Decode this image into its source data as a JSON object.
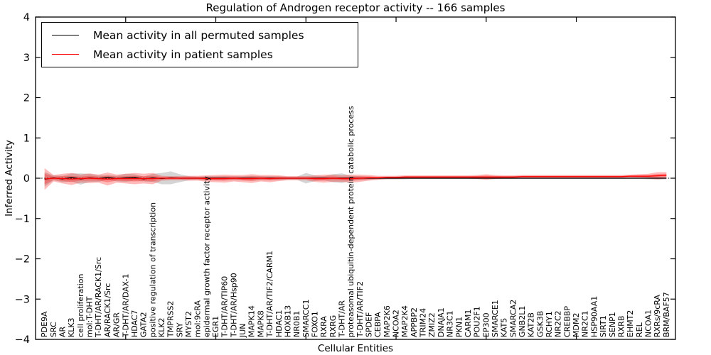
{
  "figure": {
    "title": "Regulation of Androgen receptor activity -- 166 samples",
    "xlabel": "Cellular Entities",
    "ylabel": "Inferred Activity"
  },
  "legend": {
    "entries": [
      {
        "label": "Mean activity in all permuted samples",
        "color": "#000000"
      },
      {
        "label": "Mean activity in patient samples",
        "color": "#ff0000"
      }
    ]
  },
  "colors": {
    "permuted_line": "#000000",
    "patient_line": "#ff0000",
    "permuted_band": "rgba(125,125,125,0.32)",
    "patient_band": "rgba(255,0,0,0.27)",
    "zero_line": "#000000",
    "background": "#ffffff"
  },
  "chart_data": {
    "type": "line",
    "title": "Regulation of Androgen receptor activity -- 166 samples",
    "xlabel": "Cellular Entities",
    "ylabel": "Inferred Activity",
    "ylim": [
      -4,
      4
    ],
    "yticks": [
      4,
      3,
      2,
      1,
      0,
      -1,
      -2,
      -3,
      -4
    ],
    "xtick_interval": 10,
    "grid": false,
    "zero_line_dashed": true,
    "legend_position": "upper-left",
    "categories": [
      "PDE9A",
      "SRC",
      "AR",
      "KLK3",
      "cell proliferation",
      "mol:T-DHT",
      "T-DHT/AR/RACK1/Src",
      "AR/RACK1/Src",
      "AR/GR",
      "T-DHT/AR/DAX-1",
      "HDAC7",
      "GATA2",
      "positive regulation of transcription",
      "KLK2",
      "TMPRSS2",
      "SRY",
      "MYST2",
      "mol:9cRA",
      "epidermal growth factor receptor activity",
      "EGR1",
      "T-DHT/AR/TIP60",
      "T-DHT/AR/Hsp90",
      "JUN",
      "MAPK14",
      "MAPK8",
      "T-DHT/AR/TIF2/CARM1",
      "HDAC1",
      "HOXB13",
      "NR0B1",
      "SMARCC1",
      "FOXO1",
      "RXRA",
      "RXRG",
      "T-DHT/AR",
      "proteasomal ubiquitin-dependent protein catabolic process",
      "T-DHT/AR/TIF2",
      "SPDEF",
      "CEBPA",
      "MAP2K6",
      "NCOA2",
      "MAP2K4",
      "APPBP2",
      "TRIM24",
      "ZMIZ2",
      "DNAJA1",
      "NR3C1",
      "PKN1",
      "CARM1",
      "POU2F1",
      "EP300",
      "SMARCE1",
      "KAT5",
      "SMARCA2",
      "GNB2L1",
      "KAT2B",
      "GSK3B",
      "RCHY1",
      "NR2C2",
      "CREBBP",
      "MDM2",
      "NR2C1",
      "HSP90AA1",
      "SIRT1",
      "SENP1",
      "RXRB",
      "EHMT2",
      "REL",
      "NCOA1",
      "RXRs/9cRA",
      "BRM/BAF57"
    ],
    "series": [
      {
        "name": "Mean activity in all permuted samples",
        "color": "#000000",
        "values": [
          -0.03,
          0.01,
          -0.02,
          0.02,
          -0.02,
          0.01,
          -0.01,
          0.02,
          -0.01,
          0.01,
          0.02,
          -0.02,
          0.01,
          -0.01,
          0.01,
          0,
          0,
          0,
          0,
          0,
          0,
          0,
          0,
          0,
          0,
          0,
          0,
          0,
          0,
          0,
          0,
          0,
          0,
          0,
          0,
          0,
          0,
          0,
          0,
          0,
          0,
          0,
          0,
          0,
          0,
          0,
          0,
          0,
          0,
          0,
          0,
          0,
          0,
          0,
          0,
          0,
          0,
          0,
          0,
          0,
          0,
          0,
          0,
          0,
          0,
          0,
          0,
          0,
          0,
          0
        ],
        "band_halfwidth": [
          0.18,
          0.06,
          0.08,
          0.1,
          0.14,
          0.1,
          0.08,
          0.06,
          0.07,
          0.1,
          0.08,
          0.06,
          0.1,
          0.14,
          0.16,
          0.1,
          0.05,
          0.04,
          0.05,
          0.05,
          0.05,
          0.05,
          0.05,
          0.06,
          0.05,
          0.05,
          0.05,
          0.04,
          0.04,
          0.13,
          0.07,
          0.05,
          0.1,
          0.12,
          0.06,
          0.05,
          0.04,
          0.03,
          0.03,
          0.03,
          0.03,
          0.02,
          0.02,
          0.02,
          0.02,
          0.02,
          0.02,
          0.02,
          0.02,
          0.02,
          0.02,
          0.02,
          0.02,
          0.02,
          0.02,
          0.02,
          0.02,
          0.02,
          0.02,
          0.02,
          0.02,
          0.02,
          0.02,
          0.02,
          0.02,
          0.02,
          0.02,
          0.03,
          0.03,
          0.03
        ]
      },
      {
        "name": "Mean activity in patient samples",
        "color": "#ff0000",
        "values": [
          -0.02,
          0,
          -0.01,
          -0.02,
          -0.01,
          0,
          -0.01,
          -0.02,
          -0.01,
          -0.01,
          -0.01,
          -0.01,
          -0.01,
          0,
          0,
          0,
          0,
          0,
          -0.01,
          -0.01,
          -0.01,
          0,
          -0.01,
          -0.01,
          0,
          -0.01,
          0,
          0,
          0,
          0,
          -0.01,
          -0.01,
          0,
          -0.01,
          -0.01,
          0,
          0.01,
          0.01,
          0.02,
          0.02,
          0.03,
          0.03,
          0.03,
          0.03,
          0.03,
          0.03,
          0.03,
          0.03,
          0.03,
          0.03,
          0.03,
          0.03,
          0.03,
          0.04,
          0.04,
          0.04,
          0.04,
          0.04,
          0.04,
          0.04,
          0.04,
          0.04,
          0.04,
          0.04,
          0.04,
          0.05,
          0.05,
          0.05,
          0.06,
          0.07
        ],
        "band_halfwidth": [
          0.27,
          0.08,
          0.12,
          0.15,
          0.1,
          0.12,
          0.1,
          0.16,
          0.1,
          0.12,
          0.14,
          0.12,
          0.14,
          0.06,
          0.05,
          0.05,
          0.06,
          0.06,
          0.08,
          0.09,
          0.1,
          0.08,
          0.09,
          0.11,
          0.08,
          0.09,
          0.07,
          0.05,
          0.05,
          0.05,
          0.08,
          0.1,
          0.09,
          0.08,
          0.1,
          0.09,
          0.07,
          0.05,
          0.04,
          0.04,
          0.04,
          0.04,
          0.04,
          0.04,
          0.04,
          0.04,
          0.04,
          0.04,
          0.05,
          0.07,
          0.05,
          0.04,
          0.04,
          0.04,
          0.04,
          0.04,
          0.04,
          0.04,
          0.04,
          0.04,
          0.04,
          0.04,
          0.04,
          0.04,
          0.04,
          0.04,
          0.05,
          0.06,
          0.09,
          0.08
        ]
      }
    ]
  }
}
